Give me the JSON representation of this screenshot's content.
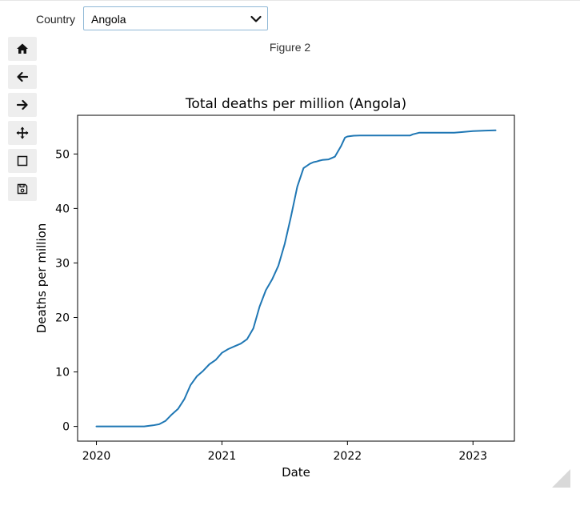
{
  "country_selector": {
    "label": "Country",
    "selected": "Angola"
  },
  "figure": {
    "title": "Figure 2"
  },
  "toolbar": {
    "items": [
      {
        "name": "home",
        "icon": "home-icon"
      },
      {
        "name": "back",
        "icon": "arrow-left-icon"
      },
      {
        "name": "forward",
        "icon": "arrow-right-icon"
      },
      {
        "name": "pan",
        "icon": "move-icon"
      },
      {
        "name": "zoom",
        "icon": "zoom-rect-icon"
      },
      {
        "name": "save",
        "icon": "save-icon"
      }
    ]
  },
  "colors": {
    "line": "#1f77b4",
    "toolbar_bg": "#eeeeee"
  },
  "chart_data": {
    "type": "line",
    "title": "Total deaths per million (Angola)",
    "xlabel": "Date",
    "ylabel": "Deaths per million",
    "xlim": [
      2019.85,
      2023.33
    ],
    "ylim": [
      -2.7,
      57.1
    ],
    "xticks": [
      2020,
      2021,
      2022,
      2023
    ],
    "xtick_labels": [
      "2020",
      "2021",
      "2022",
      "2023"
    ],
    "yticks": [
      0,
      10,
      20,
      30,
      40,
      50
    ],
    "ytick_labels": [
      "0",
      "10",
      "20",
      "30",
      "40",
      "50"
    ],
    "grid": false,
    "series": [
      {
        "name": "Angola",
        "x": [
          2020.0,
          2020.38,
          2020.45,
          2020.5,
          2020.55,
          2020.6,
          2020.65,
          2020.7,
          2020.75,
          2020.8,
          2020.85,
          2020.9,
          2020.95,
          2021.0,
          2021.05,
          2021.1,
          2021.15,
          2021.2,
          2021.25,
          2021.3,
          2021.35,
          2021.38,
          2021.4,
          2021.45,
          2021.5,
          2021.55,
          2021.6,
          2021.65,
          2021.7,
          2021.73,
          2021.75,
          2021.78,
          2021.8,
          2021.85,
          2021.9,
          2021.95,
          2021.98,
          2022.0,
          2022.03,
          2022.05,
          2022.1,
          2022.2,
          2022.3,
          2022.4,
          2022.5,
          2022.52,
          2022.57,
          2022.7,
          2022.85,
          2022.9,
          2023.0,
          2023.1,
          2023.18
        ],
        "values": [
          0,
          0,
          0.2,
          0.4,
          1.0,
          2.2,
          3.2,
          5.0,
          7.6,
          9.2,
          10.2,
          11.4,
          12.2,
          13.5,
          14.2,
          14.7,
          15.2,
          16.0,
          18.0,
          22.0,
          25.0,
          26.2,
          27.0,
          29.5,
          33.5,
          38.5,
          44.0,
          47.4,
          48.2,
          48.5,
          48.6,
          48.8,
          48.9,
          49.0,
          49.5,
          51.5,
          53.0,
          53.2,
          53.3,
          53.35,
          53.4,
          53.4,
          53.4,
          53.4,
          53.4,
          53.6,
          53.9,
          53.9,
          53.9,
          54.0,
          54.2,
          54.3,
          54.35
        ]
      }
    ]
  }
}
